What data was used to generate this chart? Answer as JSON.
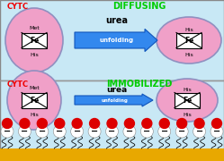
{
  "bg_color": "#c8e8f5",
  "protein_fill_color": "#f0a0c8",
  "protein_edge_color": "#9090c0",
  "arrow_fill_color": "#3388ee",
  "arrow_edge_color": "#1155bb",
  "arrow_label_color": "white",
  "urea_color": "black",
  "diffusing_color": "#00cc00",
  "immobilized_color": "#00cc00",
  "cytc_color": "#ee0000",
  "met_label": "Met",
  "his_label": "His",
  "fe_label": "Fe",
  "cytc_label": "CYTC",
  "diffusing_label": "DIFFUSING",
  "immobilized_label": "IMMOBILIZED",
  "urea_label": "urea",
  "unfolding_label": "unfolding",
  "gold_color": "#e8a800",
  "lipid_head_color": "#dd0000",
  "lipid_body_color": "white",
  "divider_color": "#999999",
  "outer_border_color": "#888888"
}
